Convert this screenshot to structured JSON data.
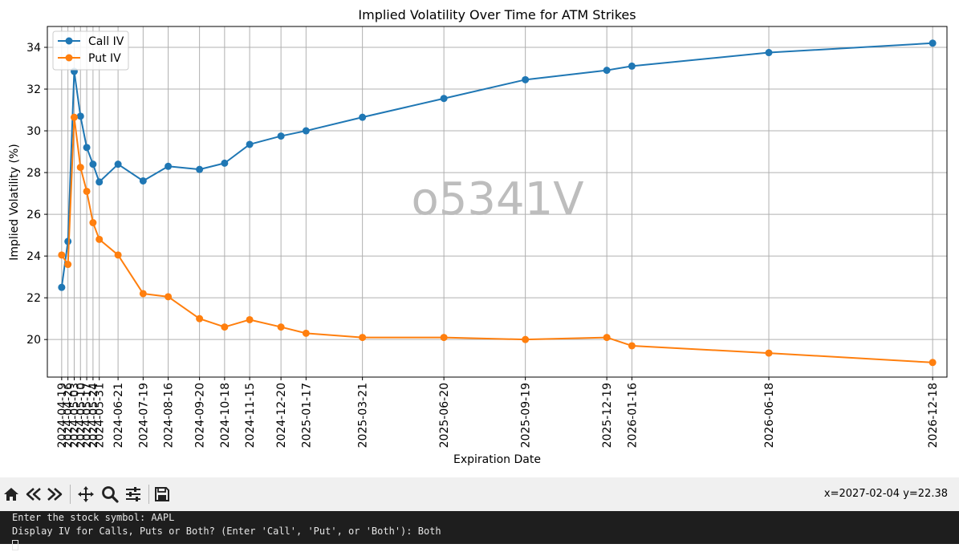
{
  "chart_data": {
    "type": "line",
    "title": "Implied Volatility Over Time for ATM Strikes",
    "xlabel": "Expiration Date",
    "ylabel": "Implied Volatility (%)",
    "x": [
      "2024-04-19",
      "2024-04-26",
      "2024-05-03",
      "2024-05-10",
      "2024-05-17",
      "2024-05-24",
      "2024-05-31",
      "2024-06-21",
      "2024-07-19",
      "2024-08-16",
      "2024-09-20",
      "2024-10-18",
      "2024-11-15",
      "2024-12-20",
      "2025-01-17",
      "2025-03-21",
      "2025-06-20",
      "2025-09-19",
      "2025-12-19",
      "2026-01-16",
      "2026-06-18",
      "2026-12-18"
    ],
    "xticklabels": [
      "2024-04-19",
      "2024-04-26",
      "2024-05-03",
      "2024-05-10",
      "2024-05-17",
      "2024-05-24",
      "2024-05-31",
      "2024-06-21",
      "2024-07-19",
      "2024-08-16",
      "2024-09-20",
      "2024-10-18",
      "2024-11-15",
      "2024-12-20",
      "2025-01-17",
      "2025-03-21",
      "2025-06-20",
      "2025-09-19",
      "2025-12-19",
      "2026-01-16",
      "2026-06-18",
      "2026-12-18"
    ],
    "yticks": [
      20,
      22,
      24,
      26,
      28,
      30,
      32,
      34
    ],
    "ylim": [
      18.2,
      35.0
    ],
    "xlim": [
      "2024-04-03",
      "2027-01-03"
    ],
    "grid": true,
    "legend": "top-left",
    "series": [
      {
        "name": "Call IV",
        "color": "#1f77b4",
        "values": [
          22.5,
          24.7,
          32.85,
          30.7,
          29.2,
          28.4,
          27.55,
          28.4,
          27.6,
          28.3,
          28.15,
          28.45,
          29.35,
          29.75,
          30.0,
          30.65,
          31.55,
          32.45,
          32.9,
          33.1,
          33.75,
          34.2
        ]
      },
      {
        "name": "Put IV",
        "color": "#ff7f0e",
        "values": [
          24.05,
          23.6,
          30.65,
          28.25,
          27.1,
          25.6,
          24.8,
          24.05,
          22.2,
          22.05,
          21.0,
          20.6,
          20.95,
          20.6,
          20.3,
          20.1,
          20.1,
          20.0,
          20.1,
          19.7,
          19.35,
          18.9
        ]
      }
    ]
  },
  "watermark": "o5341V",
  "toolbar": {
    "icons": [
      "home-icon",
      "back-icon",
      "forward-icon",
      "pan-icon",
      "zoom-icon",
      "configure-icon",
      "save-icon"
    ],
    "coords": "x=2027-02-04 y=22.38"
  },
  "terminal": {
    "line1": "Enter the stock symbol: AAPL",
    "line2": "Display IV for Calls, Puts or Both? (Enter 'Call', 'Put', or 'Both'): Both"
  }
}
